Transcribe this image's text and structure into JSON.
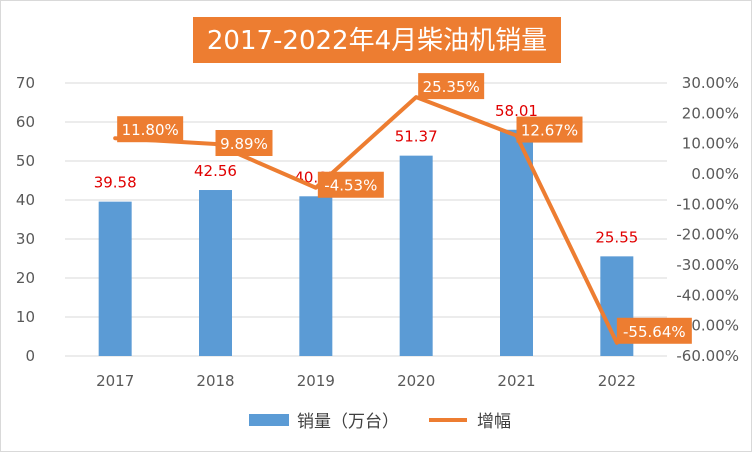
{
  "chart_data": {
    "type": "bar",
    "title": "2017-2022年4月柴油机销量",
    "categories": [
      "2017",
      "2018",
      "2019",
      "2020",
      "2021",
      "2022"
    ],
    "series": [
      {
        "name": "销量（万台）",
        "type": "bar",
        "axis": "left",
        "values": [
          39.58,
          42.56,
          40.95,
          51.37,
          58.01,
          25.55
        ],
        "labels": [
          "39.58",
          "42.56",
          "40.95",
          "51.37",
          "58.01",
          "25.55"
        ]
      },
      {
        "name": "增幅",
        "type": "line",
        "axis": "right",
        "values": [
          11.8,
          9.89,
          -4.53,
          25.35,
          12.67,
          -55.64
        ],
        "labels": [
          "11.80%",
          "9.89%",
          "-4.53%",
          "25.35%",
          "12.67%",
          "-55.64%"
        ]
      }
    ],
    "y_left": {
      "min": 0,
      "max": 70,
      "ticks": [
        "0",
        "10",
        "20",
        "30",
        "40",
        "50",
        "60",
        "70"
      ]
    },
    "y_right": {
      "min": -60,
      "max": 30,
      "ticks": [
        "-60.00%",
        "-50.00%",
        "-40.00%",
        "-30.00%",
        "-20.00%",
        "-10.00%",
        "0.00%",
        "10.00%",
        "20.00%",
        "30.00%"
      ]
    },
    "grid": true,
    "legend": "bottom",
    "colors": {
      "bar": "#5b9bd5",
      "line": "#ed7d31",
      "label_box": "#ed7d31",
      "bar_label": "#e00000",
      "title_bg": "#ed7d31"
    }
  }
}
